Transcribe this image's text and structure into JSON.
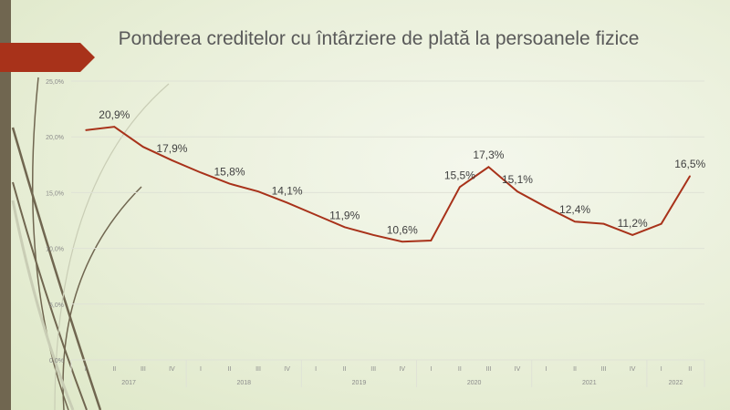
{
  "chart_data": {
    "type": "line",
    "title": "Ponderea creditelor cu întârziere de plată la persoanele fizice",
    "quarters": [
      "I",
      "II",
      "III",
      "IV",
      "I",
      "II",
      "III",
      "IV",
      "I",
      "II",
      "III",
      "IV",
      "I",
      "II",
      "III",
      "IV",
      "I",
      "II",
      "III",
      "IV",
      "I",
      "II"
    ],
    "years": [
      {
        "label": "2017",
        "n": 4
      },
      {
        "label": "2018",
        "n": 4
      },
      {
        "label": "2019",
        "n": 4
      },
      {
        "label": "2020",
        "n": 4
      },
      {
        "label": "2021",
        "n": 4
      },
      {
        "label": "2022",
        "n": 2
      }
    ],
    "values": [
      20.6,
      20.9,
      19.1,
      17.9,
      16.8,
      15.8,
      15.1,
      14.1,
      13.0,
      11.9,
      11.2,
      10.6,
      10.7,
      15.5,
      17.3,
      15.1,
      13.7,
      12.4,
      12.2,
      11.2,
      12.2,
      16.5
    ],
    "data_labels": {
      "1": "20,9%",
      "3": "17,9%",
      "5": "15,8%",
      "7": "14,1%",
      "9": "11,9%",
      "11": "10,6%",
      "13": "15,5%",
      "14": "17,3%",
      "15": "15,1%",
      "17": "12,4%",
      "19": "11,2%",
      "21": "16,5%"
    },
    "yticks": [
      "0,0%",
      "5,0%",
      "10,0%",
      "15,0%",
      "20,0%",
      "25,0%"
    ],
    "ylim": [
      0,
      25
    ],
    "line_color": "#a8321a",
    "grid": true,
    "legend": "none"
  }
}
